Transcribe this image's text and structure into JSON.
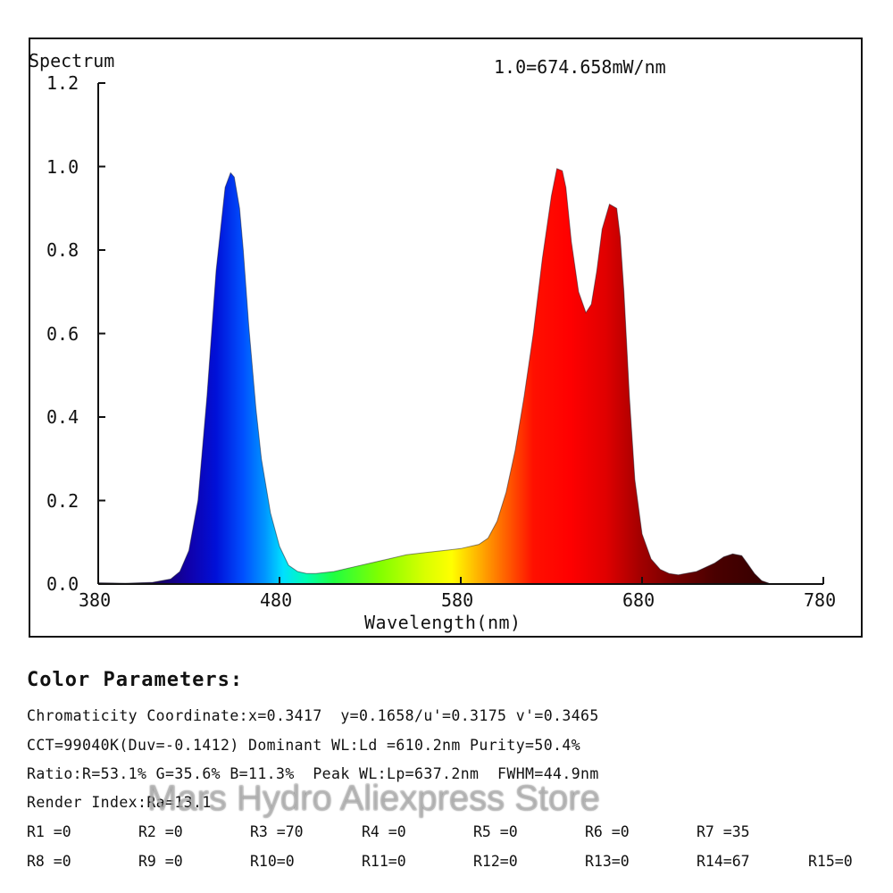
{
  "chart_data": {
    "type": "area",
    "title": "Spectrum",
    "subtitle": "1.0=674.658mW/nm",
    "xlabel": "Wavelength(nm)",
    "ylabel": "",
    "xlim": [
      380,
      780
    ],
    "ylim": [
      0,
      1.2
    ],
    "xticks": [
      "380",
      "480",
      "580",
      "680",
      "780"
    ],
    "yticks": [
      "0.0",
      "0.2",
      "0.4",
      "0.6",
      "0.8",
      "1.0",
      "1.2"
    ],
    "grid": false,
    "fill": "spectral wavelength colors",
    "series": [
      {
        "x": [
          380,
          395,
          410,
          420,
          425,
          430,
          435,
          440,
          445,
          450,
          453,
          455,
          458,
          460,
          463,
          467,
          470,
          475,
          480,
          485,
          490,
          495,
          500,
          510,
          520,
          530,
          540,
          550,
          560,
          570,
          580,
          590,
          595,
          600,
          605,
          610,
          615,
          620,
          625,
          630,
          633,
          636,
          638,
          641,
          645,
          649,
          652,
          655,
          658,
          662,
          666,
          668,
          670,
          673,
          676,
          680,
          685,
          690,
          695,
          700,
          710,
          720,
          725,
          730,
          735,
          738,
          742,
          746,
          750
        ],
        "y": [
          0.003,
          0.002,
          0.004,
          0.012,
          0.03,
          0.08,
          0.2,
          0.45,
          0.75,
          0.95,
          0.985,
          0.975,
          0.9,
          0.8,
          0.62,
          0.42,
          0.3,
          0.17,
          0.09,
          0.045,
          0.03,
          0.025,
          0.025,
          0.03,
          0.04,
          0.05,
          0.06,
          0.07,
          0.075,
          0.08,
          0.085,
          0.095,
          0.11,
          0.15,
          0.22,
          0.32,
          0.45,
          0.6,
          0.78,
          0.93,
          0.995,
          0.99,
          0.95,
          0.82,
          0.7,
          0.65,
          0.67,
          0.75,
          0.85,
          0.91,
          0.9,
          0.83,
          0.7,
          0.45,
          0.25,
          0.12,
          0.06,
          0.035,
          0.025,
          0.022,
          0.03,
          0.05,
          0.065,
          0.072,
          0.068,
          0.05,
          0.025,
          0.008,
          0.002
        ]
      }
    ]
  },
  "params": {
    "title": "Color Parameters:",
    "lines": [
      "Chromaticity Coordinate:x=0.3417  y=0.1658/u'=0.3175 v'=0.3465",
      "CCT=99040K(Duv=-0.1412) Dominant WL:Ld =610.2nm Purity=50.4%",
      "Ratio:R=53.1% G=35.6% B=11.3%  Peak WL:Lp=637.2nm  FWHM=44.9nm",
      "Render Index:Ra=13.1"
    ],
    "r_row1": [
      "R1 =0",
      "R2 =0",
      "R3 =70",
      "R4 =0",
      "R5 =0",
      "R6 =0",
      "R7 =35"
    ],
    "r_row2": [
      "R8 =0",
      "R9 =0",
      "R10=0",
      "R11=0",
      "R12=0",
      "R13=0",
      "R14=67",
      "R15=0"
    ]
  },
  "watermark": "Mars Hydro Aliexpress Store"
}
